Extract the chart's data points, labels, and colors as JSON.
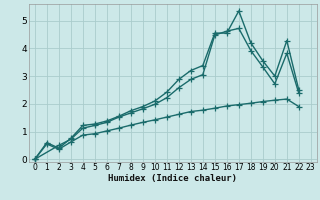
{
  "background_color": "#cce8e8",
  "grid_color": "#aacccc",
  "line_color": "#1a6b6b",
  "xlabel": "Humidex (Indice chaleur)",
  "xlim": [
    -0.5,
    23.5
  ],
  "ylim": [
    -0.1,
    5.6
  ],
  "yticks": [
    0,
    1,
    2,
    3,
    4,
    5
  ],
  "xticks": [
    0,
    1,
    2,
    3,
    4,
    5,
    6,
    7,
    8,
    9,
    10,
    11,
    12,
    13,
    14,
    15,
    16,
    17,
    18,
    19,
    20,
    21,
    22,
    23
  ],
  "series1_x": [
    0,
    1,
    2,
    3,
    4,
    5,
    6,
    7,
    8,
    9,
    10,
    11,
    12,
    13,
    14,
    15,
    16,
    17,
    18,
    19,
    20,
    21,
    22
  ],
  "series1_y": [
    0.0,
    0.6,
    0.4,
    0.75,
    1.22,
    1.27,
    1.38,
    1.55,
    1.75,
    1.9,
    2.1,
    2.42,
    2.88,
    3.2,
    3.38,
    4.55,
    4.55,
    5.35,
    4.2,
    3.55,
    3.0,
    4.28,
    2.5
  ],
  "series2_x": [
    0,
    2,
    3,
    4,
    5,
    6,
    7,
    8,
    9,
    10,
    11,
    12,
    13,
    14,
    15,
    16,
    17,
    18,
    19,
    20,
    21,
    22
  ],
  "series2_y": [
    0.0,
    0.5,
    0.72,
    1.12,
    1.22,
    1.33,
    1.52,
    1.67,
    1.82,
    1.98,
    2.22,
    2.58,
    2.88,
    3.05,
    4.48,
    4.62,
    4.72,
    3.92,
    3.33,
    2.72,
    3.82,
    2.38
  ],
  "series3_x": [
    0,
    1,
    2,
    3,
    4,
    5,
    6,
    7,
    8,
    9,
    10,
    11,
    12,
    13,
    14,
    15,
    16,
    17,
    18,
    19,
    20,
    21,
    22
  ],
  "series3_y": [
    0.0,
    0.55,
    0.36,
    0.62,
    0.87,
    0.92,
    1.02,
    1.12,
    1.23,
    1.33,
    1.42,
    1.52,
    1.62,
    1.72,
    1.77,
    1.84,
    1.92,
    1.97,
    2.02,
    2.08,
    2.13,
    2.17,
    1.9
  ],
  "marker": "+",
  "markersize": 4,
  "linewidth": 1.0
}
